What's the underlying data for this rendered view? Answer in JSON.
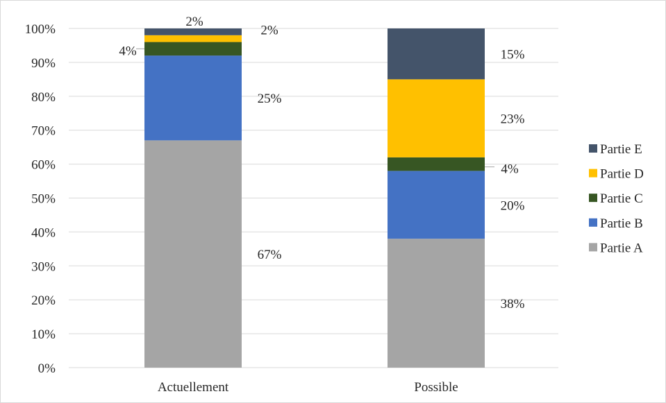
{
  "chart_data": {
    "type": "bar",
    "stacked": true,
    "normalized": true,
    "categories": [
      "Actuellement",
      "Possible"
    ],
    "series": [
      {
        "name": "Partie A",
        "values": [
          67,
          38
        ],
        "labels": [
          "67%",
          "38%"
        ],
        "color": "#a5a5a5"
      },
      {
        "name": "Partie B",
        "values": [
          25,
          20
        ],
        "labels": [
          "25%",
          "20%"
        ],
        "color": "#4472c4"
      },
      {
        "name": "Partie C",
        "values": [
          4,
          4
        ],
        "labels": [
          "4%",
          "4%"
        ],
        "color": "#375623"
      },
      {
        "name": "Partie D",
        "values": [
          2,
          23
        ],
        "labels": [
          "2%",
          "23%"
        ],
        "color": "#ffc000"
      },
      {
        "name": "Partie E",
        "values": [
          2,
          15
        ],
        "labels": [
          "2%",
          "15%"
        ],
        "color": "#44546a"
      }
    ],
    "yticks": [
      "0%",
      "10%",
      "20%",
      "30%",
      "40%",
      "50%",
      "60%",
      "70%",
      "80%",
      "90%",
      "100%"
    ],
    "ylim": [
      0,
      100
    ],
    "grid": true,
    "legend_position": "right",
    "legend_order": [
      "Partie E",
      "Partie D",
      "Partie C",
      "Partie B",
      "Partie A"
    ]
  }
}
